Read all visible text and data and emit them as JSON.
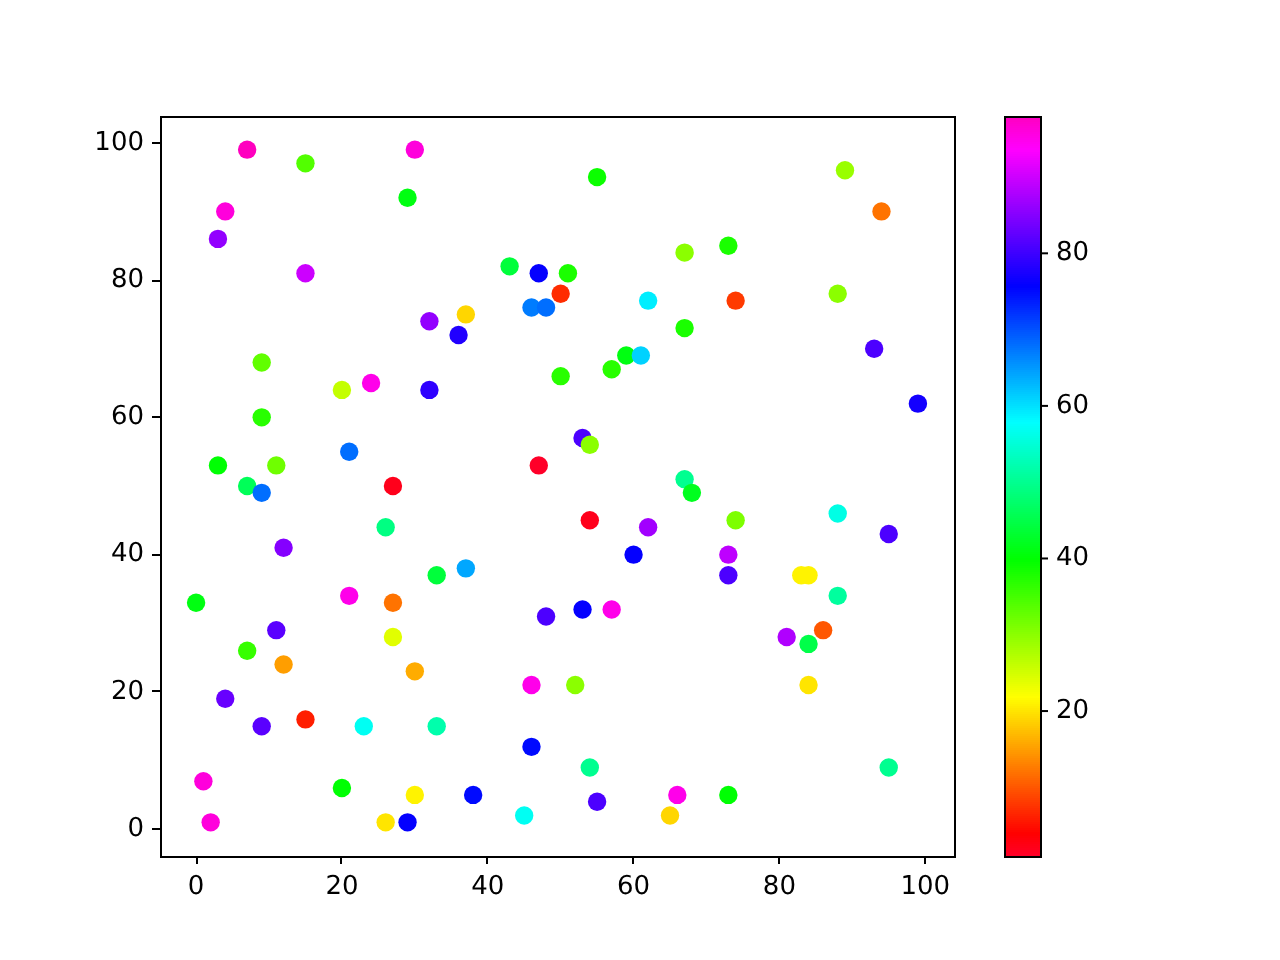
{
  "chart_data": {
    "type": "scatter",
    "x": [
      7,
      30,
      15,
      29,
      4,
      3,
      15,
      43,
      37,
      32,
      36,
      9,
      20,
      24,
      32,
      9,
      3,
      11,
      21,
      7,
      9,
      27,
      55,
      89,
      94,
      47,
      51,
      50,
      46,
      48,
      62,
      74,
      67,
      73,
      88,
      67,
      93,
      99,
      59,
      61,
      57,
      50,
      53,
      54,
      47,
      67,
      68,
      26,
      12,
      33,
      37,
      0,
      21,
      27,
      27,
      11,
      7,
      12,
      30,
      4,
      9,
      15,
      23,
      33,
      1,
      2,
      20,
      26,
      29,
      30,
      38,
      45,
      54,
      62,
      74,
      88,
      95,
      60,
      73,
      73,
      83,
      84,
      88,
      48,
      53,
      57,
      81,
      86,
      84,
      46,
      52,
      84,
      46,
      54,
      95,
      55,
      66,
      73,
      65
    ],
    "values": [
      99,
      99,
      97,
      92,
      90,
      86,
      81,
      82,
      75,
      74,
      72,
      68,
      64,
      65,
      64,
      60,
      53,
      53,
      55,
      50,
      49,
      50,
      95,
      96,
      90,
      81,
      81,
      78,
      76,
      76,
      77,
      77,
      84,
      85,
      78,
      73,
      70,
      62,
      69,
      69,
      67,
      66,
      57,
      56,
      53,
      51,
      49,
      44,
      41,
      37,
      38,
      33,
      34,
      33,
      28,
      29,
      26,
      24,
      23,
      19,
      15,
      16,
      15,
      15,
      7,
      1,
      6,
      1,
      1,
      5,
      5,
      2,
      45,
      44,
      45,
      46,
      43,
      40,
      40,
      37,
      37,
      37,
      34,
      31,
      32,
      32,
      28,
      29,
      27,
      21,
      21,
      21,
      12,
      9,
      9,
      4,
      5,
      5,
      2
    ],
    "cvalues": [
      98,
      96,
      34,
      41,
      96,
      86,
      90,
      44,
      19,
      86,
      78,
      33,
      26,
      95,
      79,
      37,
      40,
      32,
      68,
      46,
      68,
      2,
      39,
      29,
      12,
      76,
      38,
      7,
      67,
      68,
      59,
      8,
      30,
      38,
      30,
      38,
      81,
      77,
      41,
      61,
      37,
      37,
      81,
      30,
      1,
      50,
      42,
      49,
      85,
      44,
      64,
      41,
      95,
      12,
      24,
      82,
      36,
      15,
      16,
      83,
      82,
      6,
      57,
      52,
      96,
      96,
      40,
      20,
      76,
      21,
      75,
      57,
      2,
      87,
      31,
      56,
      81,
      76,
      89,
      81,
      21,
      21,
      51,
      81,
      76,
      95,
      88,
      10,
      45,
      95,
      30,
      20,
      75,
      50,
      50,
      81,
      95,
      40,
      19
    ],
    "clim": [
      1,
      98
    ],
    "cticks": [
      20,
      40,
      60,
      80
    ],
    "xlim": [
      -4.95,
      103.95
    ],
    "ylim": [
      -3.9,
      103.9
    ],
    "xticks": [
      0,
      20,
      40,
      60,
      80,
      100
    ],
    "yticks": [
      0,
      20,
      40,
      60,
      80,
      100
    ],
    "marker": "circle"
  }
}
